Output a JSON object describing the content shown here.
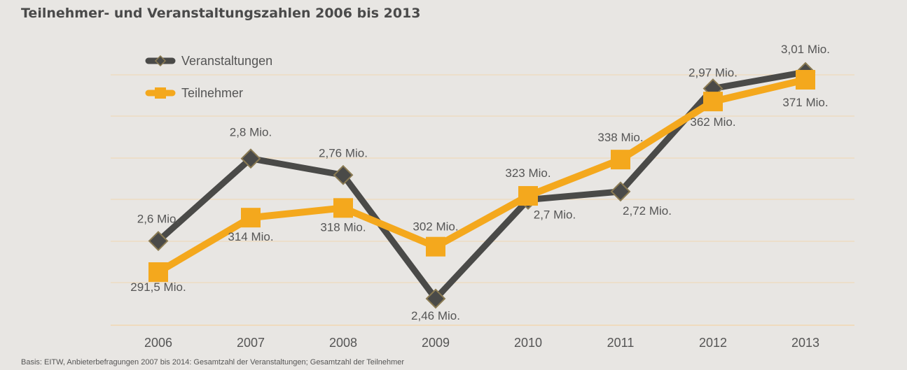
{
  "title": "Teilnehmer- und Veranstaltungszahlen 2006 bis 2013",
  "footnote": "Basis: EITW, Anbieterbefragungen 2007 bis 2014: Gesamtzahl der Veranstaltungen; Gesamtzahl der Teilnehmer",
  "chart_data": {
    "type": "line",
    "title": "Teilnehmer- und Veranstaltungszahlen 2006 bis 2013",
    "x": [
      "2006",
      "2007",
      "2008",
      "2009",
      "2010",
      "2011",
      "2012",
      "2013"
    ],
    "grid": true,
    "legend_position": "top-left",
    "series": [
      {
        "name": "Veranstaltungen",
        "color": "#4a4a48",
        "marker": "diamond",
        "values": [
          2.6,
          2.8,
          2.76,
          2.46,
          2.7,
          2.72,
          2.97,
          3.01
        ],
        "labels": [
          "2,6 Mio.",
          "2,8 Mio.",
          "2,76 Mio.",
          "2,46 Mio.",
          "2,7 Mio.",
          "2,72 Mio.",
          "2,97 Mio.",
          "3,01 Mio."
        ]
      },
      {
        "name": "Teilnehmer",
        "color": "#f4a81d",
        "marker": "square",
        "values": [
          291.5,
          314,
          318,
          302,
          323,
          338,
          362,
          371
        ],
        "labels": [
          "291,5 Mio.",
          "314 Mio.",
          "318 Mio.",
          "302 Mio.",
          "323 Mio.",
          "338 Mio.",
          "362 Mio.",
          "371 Mio."
        ]
      }
    ]
  }
}
